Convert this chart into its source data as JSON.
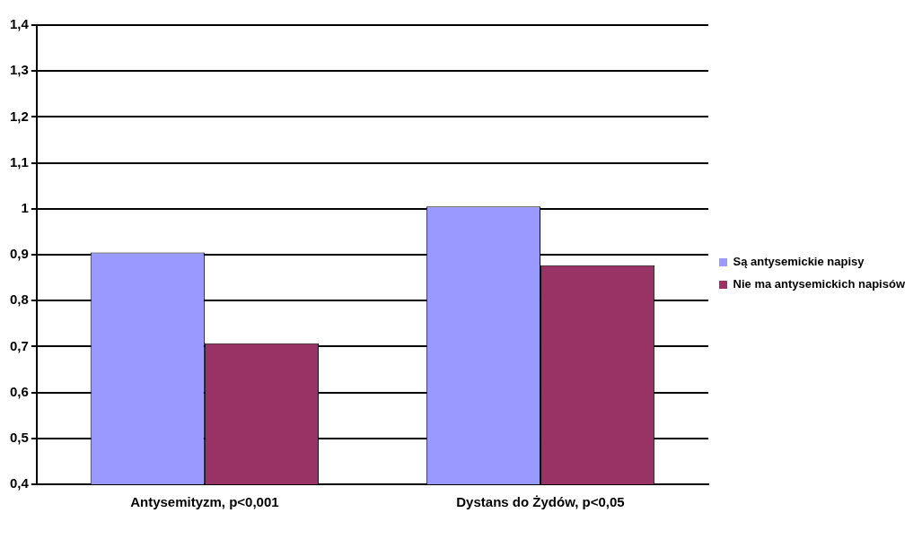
{
  "chart_data": {
    "type": "bar",
    "categories": [
      "Antysemityzm, p<0,001",
      "Dystans do Żydów, p<0,05"
    ],
    "series": [
      {
        "name": "Są antysemickie napisy",
        "color": "#9999ff",
        "values": [
          0.905,
          1.005
        ]
      },
      {
        "name": "Nie ma antysemickich napisów",
        "color": "#993366",
        "values": [
          0.707,
          0.877
        ]
      }
    ],
    "ylim": [
      0.4,
      1.4
    ],
    "yticks": [
      {
        "value": 0.4,
        "label": "0,4"
      },
      {
        "value": 0.5,
        "label": "0,5"
      },
      {
        "value": 0.6,
        "label": "0,6"
      },
      {
        "value": 0.7,
        "label": "0,7"
      },
      {
        "value": 0.8,
        "label": "0,8"
      },
      {
        "value": 0.9,
        "label": "0,9"
      },
      {
        "value": 1,
        "label": "1"
      },
      {
        "value": 1.1,
        "label": "1,1"
      },
      {
        "value": 1.2,
        "label": "1,2"
      },
      {
        "value": 1.3,
        "label": "1,3"
      },
      {
        "value": 1.4,
        "label": "1,4"
      }
    ],
    "grid": "y",
    "legend": "right"
  }
}
